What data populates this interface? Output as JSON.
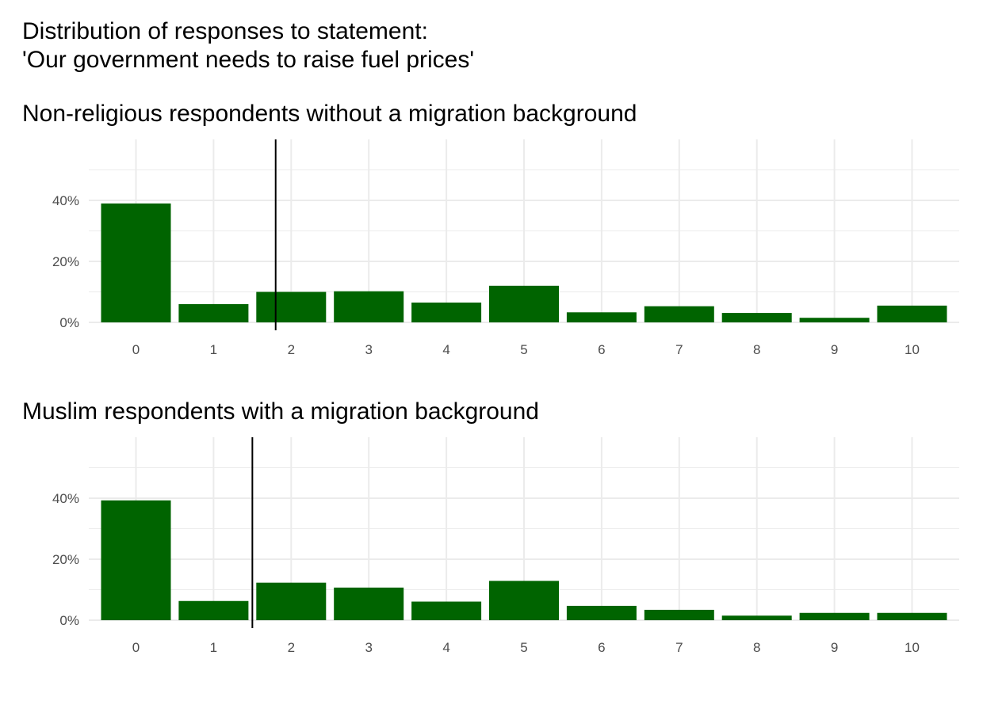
{
  "title": {
    "line1": "Distribution of responses to statement:",
    "line2": "'Our government needs to raise fuel prices'"
  },
  "colors": {
    "bar": "#006400",
    "grid": "#ebebeb",
    "reference_line": "#000000"
  },
  "chart_data": [
    {
      "type": "bar",
      "title": "Non-religious respondents without a migration background",
      "categories": [
        "0",
        "1",
        "2",
        "3",
        "4",
        "5",
        "6",
        "7",
        "8",
        "9",
        "10"
      ],
      "values": [
        39,
        6,
        10,
        10.2,
        6.5,
        12,
        3.3,
        5.3,
        3.1,
        1.5,
        5.5
      ],
      "y_unit": "percent",
      "ylim": [
        0,
        60
      ],
      "y_ticks": [
        0,
        20,
        40
      ],
      "y_tick_labels": [
        "0%",
        "20%",
        "40%"
      ],
      "reference_line_x": 1.8,
      "grid": true
    },
    {
      "type": "bar",
      "title": "Muslim respondents with a migration background",
      "categories": [
        "0",
        "1",
        "2",
        "3",
        "4",
        "5",
        "6",
        "7",
        "8",
        "9",
        "10"
      ],
      "values": [
        39.3,
        6.3,
        12.3,
        10.7,
        6.1,
        12.9,
        4.7,
        3.4,
        1.5,
        2.4,
        2.4
      ],
      "y_unit": "percent",
      "ylim": [
        0,
        60
      ],
      "y_ticks": [
        0,
        20,
        40
      ],
      "y_tick_labels": [
        "0%",
        "20%",
        "40%"
      ],
      "reference_line_x": 1.5,
      "grid": true
    }
  ]
}
